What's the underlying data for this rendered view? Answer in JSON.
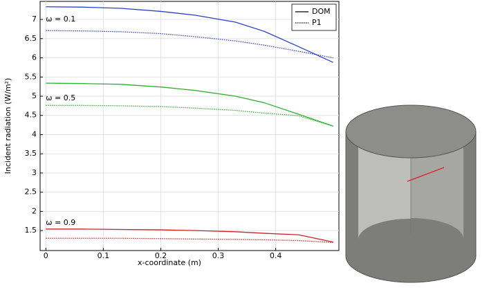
{
  "chart_data": {
    "type": "line",
    "x_label": "x-coordinate (m)",
    "y_label": "Incident radiation (W/m²)",
    "x": [
      0,
      0.065,
      0.13,
      0.2,
      0.26,
      0.33,
      0.38,
      0.44,
      0.5
    ],
    "xlim": [
      -0.01,
      0.51
    ],
    "ylim": [
      0.98,
      7.47
    ],
    "xticks": [
      0,
      0.1,
      0.2,
      0.3,
      0.4
    ],
    "yticks": [
      1.5,
      2,
      2.5,
      3,
      3.5,
      4,
      4.5,
      5,
      5.5,
      6,
      6.5,
      7
    ],
    "grid": true,
    "legend_position": "top-right",
    "legend": [
      {
        "name": "DOM",
        "dash": "solid",
        "color": "#000000"
      },
      {
        "name": "P1",
        "dash": "dotted",
        "color": "#000000"
      }
    ],
    "series": [
      {
        "legend": 0,
        "color": "#2a3fcf",
        "values": [
          7.33,
          7.32,
          7.29,
          7.21,
          7.11,
          6.93,
          6.69,
          6.29,
          5.88
        ]
      },
      {
        "legend": 1,
        "color": "#2a3fcf",
        "values": [
          6.71,
          6.7,
          6.68,
          6.63,
          6.55,
          6.44,
          6.33,
          6.17,
          6.0
        ]
      },
      {
        "legend": 0,
        "color": "#2fae2f",
        "values": [
          5.34,
          5.33,
          5.31,
          5.24,
          5.15,
          5.0,
          4.83,
          4.53,
          4.22
        ]
      },
      {
        "legend": 1,
        "color": "#2fae2f",
        "values": [
          4.76,
          4.76,
          4.75,
          4.73,
          4.69,
          4.63,
          4.56,
          4.49,
          4.22
        ]
      },
      {
        "legend": 0,
        "color": "#cc2222",
        "values": [
          1.54,
          1.54,
          1.53,
          1.52,
          1.5,
          1.47,
          1.43,
          1.39,
          1.2
        ]
      },
      {
        "legend": 1,
        "color": "#cc2222",
        "values": [
          1.3,
          1.3,
          1.3,
          1.29,
          1.28,
          1.27,
          1.26,
          1.24,
          1.19
        ]
      }
    ],
    "annotations": [
      {
        "text": "ω = 0.1",
        "x": 0,
        "y": 7.0
      },
      {
        "text": "ω = 0.5",
        "x": 0,
        "y": 4.95
      },
      {
        "text": "ω = 0.9",
        "x": 0,
        "y": 1.7
      }
    ]
  }
}
